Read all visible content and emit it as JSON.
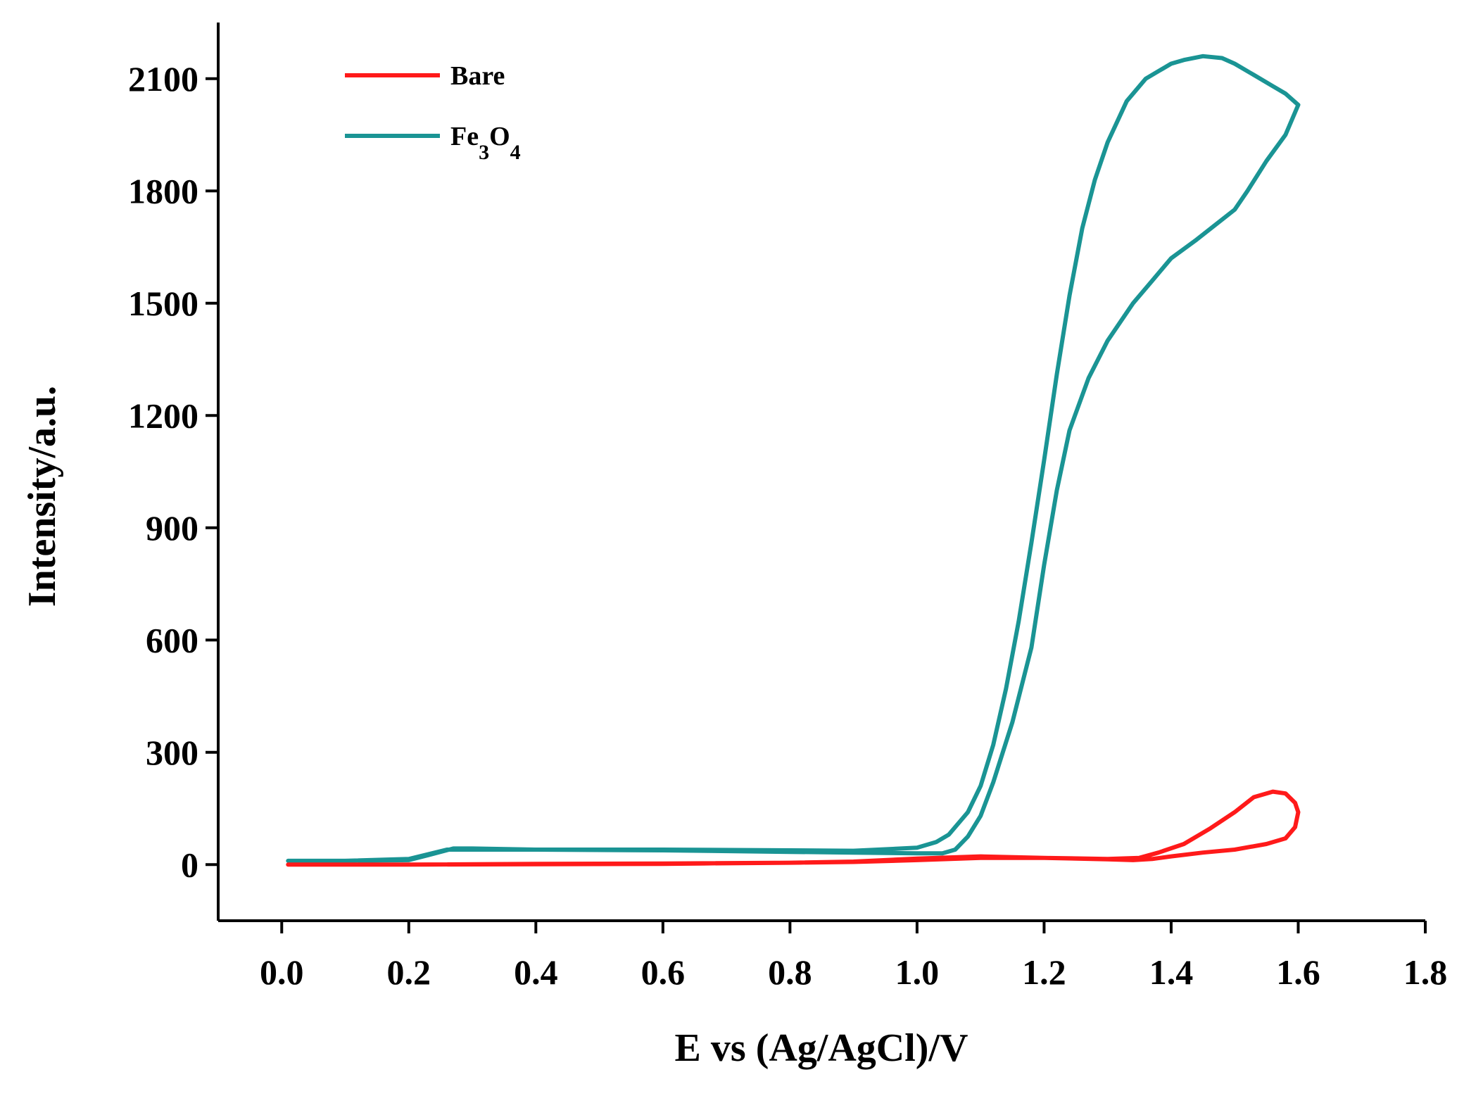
{
  "chart_data": {
    "type": "line",
    "title": "",
    "xlabel": "E vs (Ag/AgCl)/V",
    "ylabel": "Intensity/a.u.",
    "xlim": [
      -0.1,
      1.8
    ],
    "ylim": [
      -150,
      2250
    ],
    "xticks": [
      "0.0",
      "0.2",
      "0.4",
      "0.6",
      "0.8",
      "1.0",
      "1.2",
      "1.4",
      "1.6",
      "1.8"
    ],
    "yticks": [
      "0",
      "300",
      "600",
      "900",
      "1200",
      "1500",
      "1800",
      "2100"
    ],
    "legend_position": "top-left",
    "series": [
      {
        "name": "Bare",
        "legend_label": "Bare",
        "color": "#ff1a1a",
        "x": [
          0.01,
          0.2,
          0.4,
          0.6,
          0.8,
          0.9,
          1.0,
          1.1,
          1.2,
          1.3,
          1.35,
          1.38,
          1.42,
          1.46,
          1.5,
          1.53,
          1.56,
          1.58,
          1.595,
          1.6,
          1.595,
          1.58,
          1.55,
          1.5,
          1.45,
          1.4,
          1.37,
          1.34,
          1.3,
          1.2,
          1.1,
          1.0,
          0.9,
          0.8,
          0.6,
          0.4,
          0.2,
          0.01
        ],
        "y": [
          0,
          0,
          2,
          3,
          5,
          7,
          12,
          18,
          18,
          15,
          18,
          32,
          55,
          95,
          140,
          180,
          195,
          190,
          165,
          140,
          100,
          70,
          55,
          40,
          32,
          22,
          15,
          12,
          14,
          18,
          22,
          16,
          8,
          5,
          2,
          1,
          0,
          0
        ]
      },
      {
        "name": "Fe3O4",
        "legend_label": "Fe",
        "legend_sub1": "3",
        "legend_mid": "O",
        "legend_sub2": "4",
        "color": "#1a9494",
        "x": [
          0.01,
          0.1,
          0.2,
          0.23,
          0.27,
          0.3,
          0.4,
          0.6,
          0.8,
          0.9,
          1.0,
          1.03,
          1.05,
          1.08,
          1.1,
          1.12,
          1.14,
          1.16,
          1.18,
          1.2,
          1.22,
          1.24,
          1.26,
          1.28,
          1.3,
          1.33,
          1.36,
          1.38,
          1.4,
          1.42,
          1.45,
          1.48,
          1.5,
          1.53,
          1.56,
          1.58,
          1.6,
          1.58,
          1.55,
          1.52,
          1.5,
          1.47,
          1.44,
          1.4,
          1.37,
          1.34,
          1.3,
          1.27,
          1.24,
          1.22,
          1.2,
          1.18,
          1.15,
          1.12,
          1.1,
          1.08,
          1.06,
          1.04,
          1.0,
          0.9,
          0.8,
          0.6,
          0.4,
          0.3,
          0.26,
          0.2,
          0.1,
          0.01
        ],
        "y": [
          10,
          10,
          12,
          25,
          43,
          43,
          40,
          40,
          38,
          37,
          45,
          60,
          80,
          140,
          210,
          320,
          470,
          650,
          860,
          1080,
          1310,
          1520,
          1700,
          1830,
          1930,
          2040,
          2100,
          2120,
          2140,
          2150,
          2160,
          2155,
          2140,
          2110,
          2080,
          2060,
          2030,
          1950,
          1880,
          1800,
          1750,
          1710,
          1670,
          1620,
          1560,
          1500,
          1400,
          1300,
          1160,
          1000,
          800,
          580,
          380,
          220,
          130,
          75,
          40,
          30,
          30,
          32,
          34,
          38,
          40,
          40,
          40,
          15,
          10,
          10
        ]
      }
    ]
  }
}
